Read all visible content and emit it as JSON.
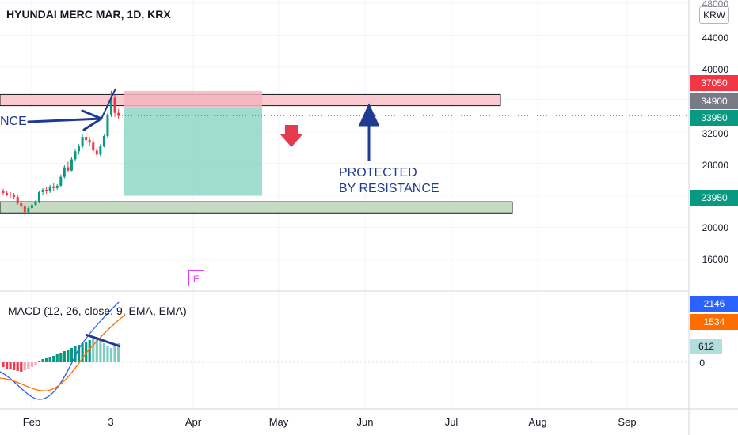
{
  "header": {
    "title": "HYUNDAI MERC MAR, 1D, KRX",
    "currency_button": "KRW"
  },
  "annotations": {
    "left_label": "NCE",
    "protected_line1": "PROTECTED",
    "protected_line2": "BY RESISTANCE",
    "earnings_marker": "E"
  },
  "macd": {
    "label": "MACD (12, 26, close, 9, EMA, EMA)",
    "macd_value": "2146",
    "signal_value": "1534",
    "histogram_value": "612",
    "zero_label": "0"
  },
  "price_axis": {
    "ticks": [
      "48000",
      "44000",
      "40000",
      "32000",
      "28000",
      "20000",
      "16000"
    ],
    "badges": [
      {
        "label": "37050",
        "color": "#f23645"
      },
      {
        "label": "34900",
        "color": "#787b86"
      },
      {
        "label": "33950",
        "color": "#089981"
      },
      {
        "label": "23950",
        "color": "#089981"
      }
    ]
  },
  "time_axis": {
    "ticks": [
      "Feb",
      "3",
      "Apr",
      "May",
      "Jun",
      "Jul",
      "Aug",
      "Sep"
    ]
  },
  "colors": {
    "up": "#089981",
    "down": "#f23645",
    "resistance_zone": "#f8c9cf",
    "support_zone": "#c7dbc4",
    "target_box": "#7fd1bd",
    "stop_box": "#f5b5bf",
    "arrow": "#1f3a93",
    "macd_line": "#2962ff",
    "signal_line": "#ff6d00"
  },
  "chart_data": {
    "type": "candlestick",
    "y_unit": "KRW",
    "ylim": [
      12000,
      50000
    ],
    "last_close": 33950,
    "resistance_zone": [
      35200,
      36600
    ],
    "support_zone": [
      21800,
      23200
    ],
    "short_position": {
      "entry": 34900,
      "stop": 37050,
      "target": 23950
    },
    "candles": [
      [
        24500,
        24800,
        24000,
        24300
      ],
      [
        24300,
        24600,
        23900,
        24100
      ],
      [
        24100,
        24400,
        23700,
        24000
      ],
      [
        24000,
        24300,
        23500,
        23800
      ],
      [
        23800,
        24000,
        22800,
        23000
      ],
      [
        23000,
        23300,
        22300,
        22600
      ],
      [
        22600,
        22900,
        21500,
        21900
      ],
      [
        21900,
        22600,
        21700,
        22400
      ],
      [
        22400,
        23000,
        22200,
        22800
      ],
      [
        22800,
        23400,
        22600,
        23200
      ],
      [
        23200,
        24600,
        23000,
        24400
      ],
      [
        24400,
        24900,
        24000,
        24700
      ],
      [
        24700,
        25000,
        24200,
        24500
      ],
      [
        24500,
        25300,
        24300,
        25100
      ],
      [
        25100,
        25500,
        24600,
        24900
      ],
      [
        24900,
        25400,
        24700,
        25200
      ],
      [
        25200,
        26600,
        25000,
        26300
      ],
      [
        26300,
        27800,
        26100,
        27500
      ],
      [
        27500,
        28200,
        26900,
        27100
      ],
      [
        27100,
        28800,
        27000,
        28500
      ],
      [
        28500,
        29800,
        28200,
        29500
      ],
      [
        29500,
        30400,
        29100,
        30100
      ],
      [
        30100,
        31600,
        29900,
        31300
      ],
      [
        31300,
        31900,
        30600,
        30900
      ],
      [
        30900,
        31300,
        30200,
        30600
      ],
      [
        30600,
        30900,
        29300,
        29600
      ],
      [
        29600,
        29900,
        28700,
        29100
      ],
      [
        29100,
        30400,
        28900,
        30100
      ],
      [
        30100,
        31600,
        30000,
        31400
      ],
      [
        31400,
        34300,
        31200,
        34100
      ],
      [
        34100,
        37050,
        33800,
        36200
      ],
      [
        36200,
        36600,
        33800,
        34300
      ],
      [
        34300,
        34800,
        33500,
        33950
      ]
    ]
  }
}
